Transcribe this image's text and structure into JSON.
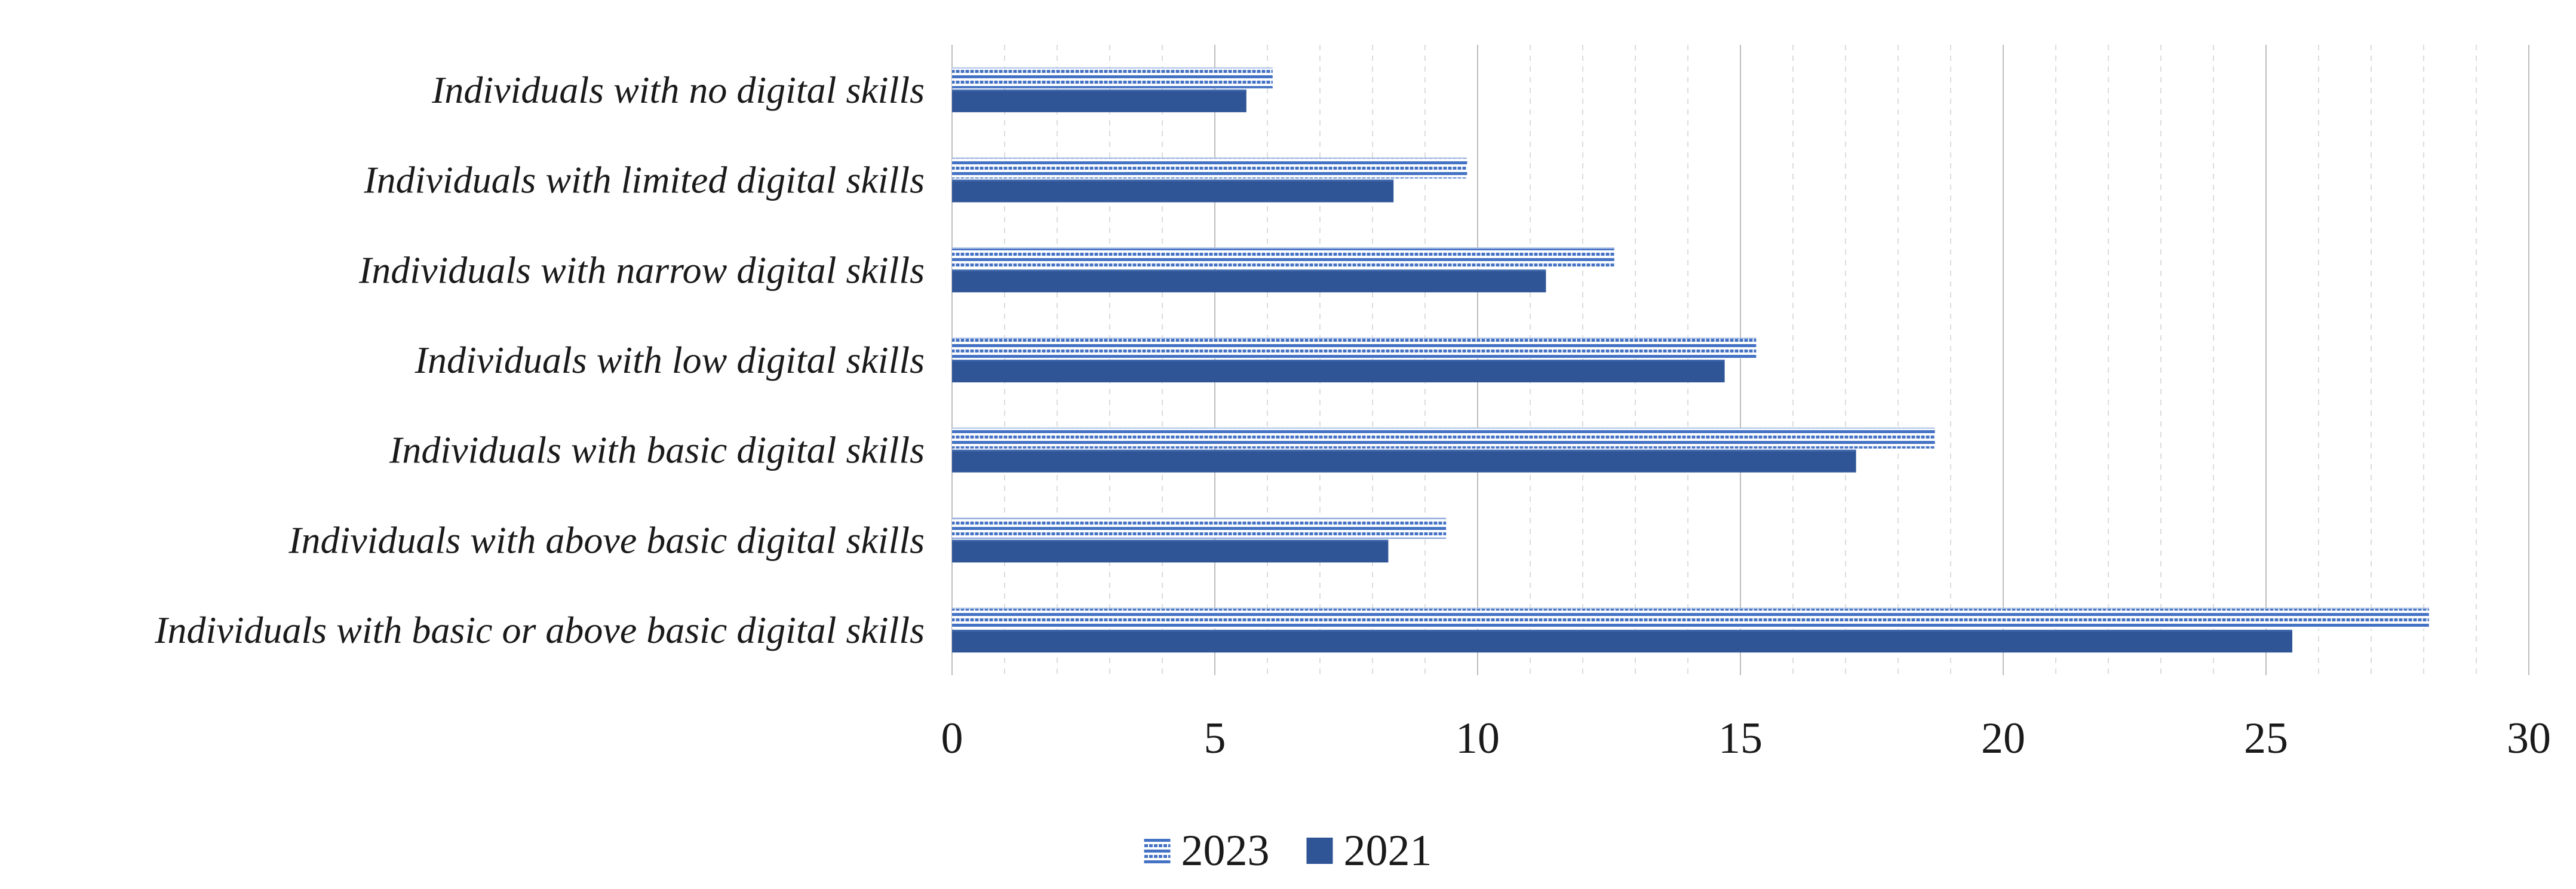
{
  "chart_data": {
    "type": "bar",
    "orientation": "horizontal",
    "title": "",
    "xlabel": "",
    "ylabel": "",
    "categories": [
      "Individuals with no digital skills",
      "Individuals with limited digital skills",
      "Individuals with narrow digital skills",
      "Individuals with low digital skills",
      "Individuals with basic digital skills",
      "Individuals with above basic digital skills",
      "Individuals with basic or above basic digital skills"
    ],
    "series": [
      {
        "name": "2023",
        "style": "striped",
        "color": "#4472C4",
        "values": [
          6.1,
          9.8,
          12.6,
          15.3,
          18.7,
          9.4,
          28.1
        ]
      },
      {
        "name": "2021",
        "style": "solid",
        "color": "#2F5597",
        "values": [
          5.6,
          8.4,
          11.3,
          14.7,
          17.2,
          8.3,
          25.5
        ]
      }
    ],
    "xlim": [
      0,
      30
    ],
    "x_ticks": [
      0,
      5,
      10,
      15,
      20,
      25,
      30
    ],
    "grid": {
      "minor_step": 1,
      "major_step": 5,
      "enabled": true
    },
    "legend_position": "bottom"
  },
  "legend": {
    "items": [
      {
        "label": "2023",
        "swatch": "striped"
      },
      {
        "label": "2021",
        "swatch": "solid"
      }
    ]
  },
  "colors": {
    "stripe_blue": "#4472C4",
    "stripe_pale": "#B4C7E7",
    "solid_blue": "#2F5597",
    "solid_blue_highlight": "#4068AD",
    "grid_minor": "#DCDCDC",
    "grid_major": "#BDBDBD",
    "text": "#1A1A1A",
    "background": "#FFFFFF"
  }
}
